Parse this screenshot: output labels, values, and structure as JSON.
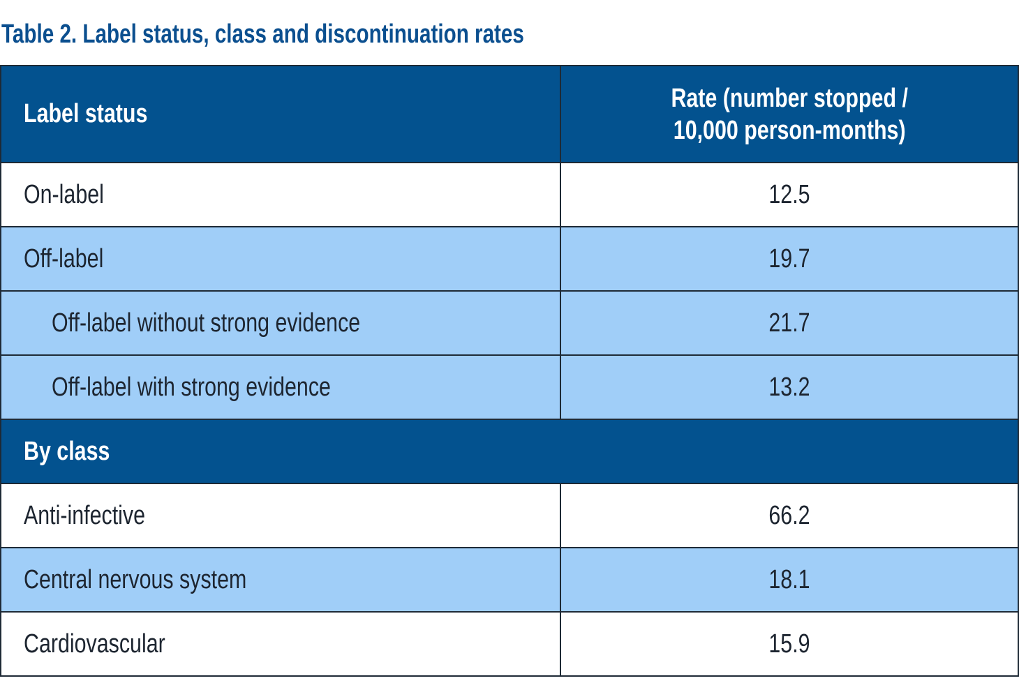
{
  "title": "Table 2. Label status, class and discontinuation rates",
  "header": {
    "col1": "Label status",
    "col2_line1": "Rate (number stopped /",
    "col2_line2": "10,000 person-months)"
  },
  "rows": [
    {
      "label": "On-label",
      "rate": "12.5"
    },
    {
      "label": "Off-label",
      "rate": "19.7"
    },
    {
      "label": "Off-label without strong evidence",
      "rate": "21.7"
    },
    {
      "label": "Off-label with strong evidence",
      "rate": "13.2"
    }
  ],
  "section": "By class",
  "class_rows": [
    {
      "label": "Anti-infective",
      "rate": "66.2"
    },
    {
      "label": "Central nervous system",
      "rate": "18.1"
    },
    {
      "label": "Cardiovascular",
      "rate": "15.9"
    }
  ],
  "colors": {
    "header": "#03528f",
    "stripe": "#a0cef8",
    "title": "#0b4f8f"
  }
}
